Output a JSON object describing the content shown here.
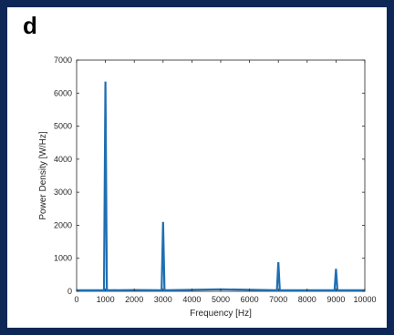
{
  "panel": {
    "letter": "d"
  },
  "colors": {
    "frame": "#0d2857",
    "series": "#1f6fb3",
    "axis": "#262626"
  },
  "chart_data": {
    "type": "line",
    "title": "",
    "xlabel": "Frequency [Hz]",
    "ylabel": "Power Density [W/Hz]",
    "xlim": [
      0,
      10000
    ],
    "ylim": [
      0,
      7000
    ],
    "xticks": [
      0,
      1000,
      2000,
      3000,
      4000,
      5000,
      6000,
      7000,
      8000,
      9000,
      10000
    ],
    "yticks": [
      0,
      1000,
      2000,
      3000,
      4000,
      5000,
      6000,
      7000
    ],
    "grid": false,
    "legend": "none",
    "series": [
      {
        "color": "#1f6fb3",
        "x": [
          0,
          950,
          1000,
          1050,
          2000,
          2950,
          3000,
          3050,
          5000,
          6950,
          7000,
          7050,
          8950,
          9000,
          9050,
          10000
        ],
        "y": [
          30,
          30,
          6350,
          30,
          40,
          30,
          2100,
          30,
          60,
          30,
          880,
          30,
          30,
          680,
          30,
          30
        ]
      }
    ]
  }
}
